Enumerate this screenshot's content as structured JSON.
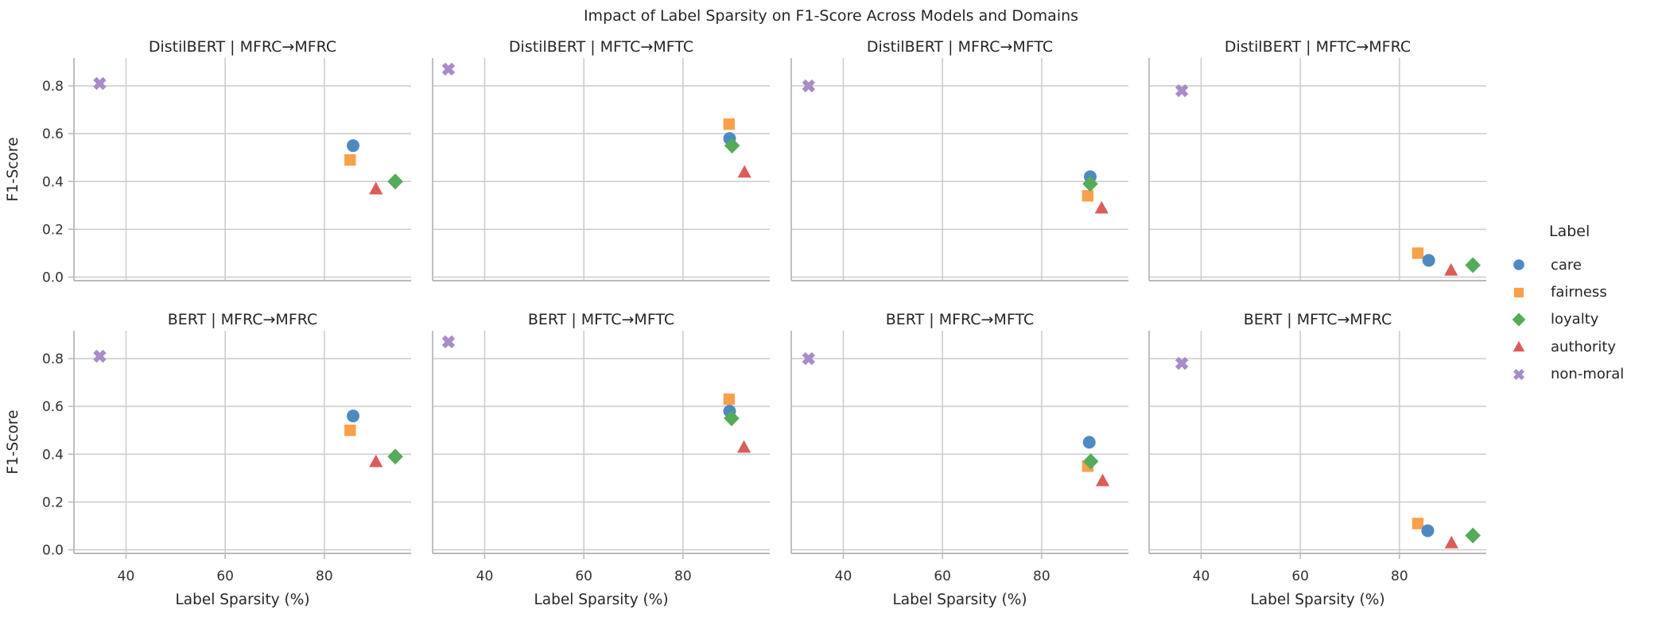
{
  "chart_data": {
    "type": "scatter",
    "title": "Impact of Label Sparsity on F1-Score Across Models and Domains",
    "xlabel": "Label Sparsity (%)",
    "ylabel": "F1-Score",
    "facet": {
      "rows_models": [
        "DistilBERT",
        "BERT"
      ],
      "cols_transfers": [
        "MFRC→MFRC",
        "MFTC→MFTC",
        "MFRC→MFTC",
        "MFTC→MFRC"
      ]
    },
    "axes": {
      "xticks": [
        40,
        60,
        80
      ],
      "xticklabels": [
        "40",
        "60",
        "80"
      ],
      "yticks": [
        0.0,
        0.2,
        0.4,
        0.6,
        0.8
      ],
      "yticklabels": [
        "0.0",
        "0.2",
        "0.4",
        "0.6",
        "0.8"
      ],
      "xlim": [
        29.5,
        97.5
      ],
      "ylim": [
        -0.015,
        0.9165
      ],
      "grid": true
    },
    "legend": {
      "title": "Label",
      "position": "right",
      "entries": [
        {
          "label": "care",
          "marker": "circle",
          "color": "#4E8AC1"
        },
        {
          "label": "fairness",
          "marker": "square",
          "color": "#F9A04B"
        },
        {
          "label": "loyalty",
          "marker": "diamond",
          "color": "#55AB5A"
        },
        {
          "label": "authority",
          "marker": "triangle",
          "color": "#DA5D5C"
        },
        {
          "label": "non-moral",
          "marker": "x",
          "color": "#A78CC9"
        }
      ]
    },
    "draw_order": [
      "fairness",
      "care",
      "loyalty",
      "authority",
      "non-moral"
    ],
    "subplots": [
      {
        "model": "DistilBERT",
        "transfer": "MFRC→MFRC",
        "title": "DistilBERT | MFRC→MFRC",
        "points": {
          "care": [
            85.8,
            0.55
          ],
          "fairness": [
            85.2,
            0.49
          ],
          "loyalty": [
            94.3,
            0.4
          ],
          "authority": [
            90.4,
            0.37
          ],
          "non-moral": [
            34.7,
            0.81
          ]
        }
      },
      {
        "model": "DistilBERT",
        "transfer": "MFTC→MFTC",
        "title": "DistilBERT | MFTC→MFTC",
        "points": {
          "care": [
            89.4,
            0.58
          ],
          "fairness": [
            89.3,
            0.64
          ],
          "loyalty": [
            89.9,
            0.55
          ],
          "authority": [
            92.4,
            0.44
          ],
          "non-moral": [
            32.7,
            0.87
          ]
        }
      },
      {
        "model": "DistilBERT",
        "transfer": "MFRC→MFTC",
        "title": "DistilBERT | MFRC→MFTC",
        "points": {
          "care": [
            89.8,
            0.42
          ],
          "fairness": [
            89.3,
            0.34
          ],
          "loyalty": [
            89.8,
            0.39
          ],
          "authority": [
            92.1,
            0.29
          ],
          "non-moral": [
            33.0,
            0.8
          ]
        }
      },
      {
        "model": "DistilBERT",
        "transfer": "MFTC→MFRC",
        "title": "DistilBERT | MFTC→MFRC",
        "points": {
          "care": [
            85.9,
            0.07
          ],
          "fairness": [
            83.7,
            0.1
          ],
          "loyalty": [
            94.8,
            0.05
          ],
          "authority": [
            90.4,
            0.03
          ],
          "non-moral": [
            36.1,
            0.78
          ]
        }
      },
      {
        "model": "BERT",
        "transfer": "MFRC→MFRC",
        "title": "BERT | MFRC→MFRC",
        "points": {
          "care": [
            85.8,
            0.56
          ],
          "fairness": [
            85.2,
            0.5
          ],
          "loyalty": [
            94.3,
            0.39
          ],
          "authority": [
            90.4,
            0.37
          ],
          "non-moral": [
            34.7,
            0.81
          ]
        }
      },
      {
        "model": "BERT",
        "transfer": "MFTC→MFTC",
        "title": "BERT | MFTC→MFTC",
        "points": {
          "care": [
            89.4,
            0.58
          ],
          "fairness": [
            89.3,
            0.63
          ],
          "loyalty": [
            89.8,
            0.55
          ],
          "authority": [
            92.3,
            0.43
          ],
          "non-moral": [
            32.7,
            0.87
          ]
        }
      },
      {
        "model": "BERT",
        "transfer": "MFRC→MFTC",
        "title": "BERT | MFRC→MFTC",
        "points": {
          "care": [
            89.6,
            0.45
          ],
          "fairness": [
            89.3,
            0.35
          ],
          "loyalty": [
            89.9,
            0.37
          ],
          "authority": [
            92.3,
            0.29
          ],
          "non-moral": [
            33.0,
            0.8
          ]
        }
      },
      {
        "model": "BERT",
        "transfer": "MFTC→MFRC",
        "title": "BERT | MFTC→MFRC",
        "points": {
          "care": [
            85.7,
            0.08
          ],
          "fairness": [
            83.7,
            0.11
          ],
          "loyalty": [
            94.8,
            0.06
          ],
          "authority": [
            90.5,
            0.03
          ],
          "non-moral": [
            36.1,
            0.78
          ]
        }
      }
    ],
    "style": {
      "grid_color": "#cbcbcb",
      "spine_color": "#b9b9b9",
      "tick_text_color": "#333333",
      "text_color": "#262626",
      "background": "#ffffff"
    }
  }
}
